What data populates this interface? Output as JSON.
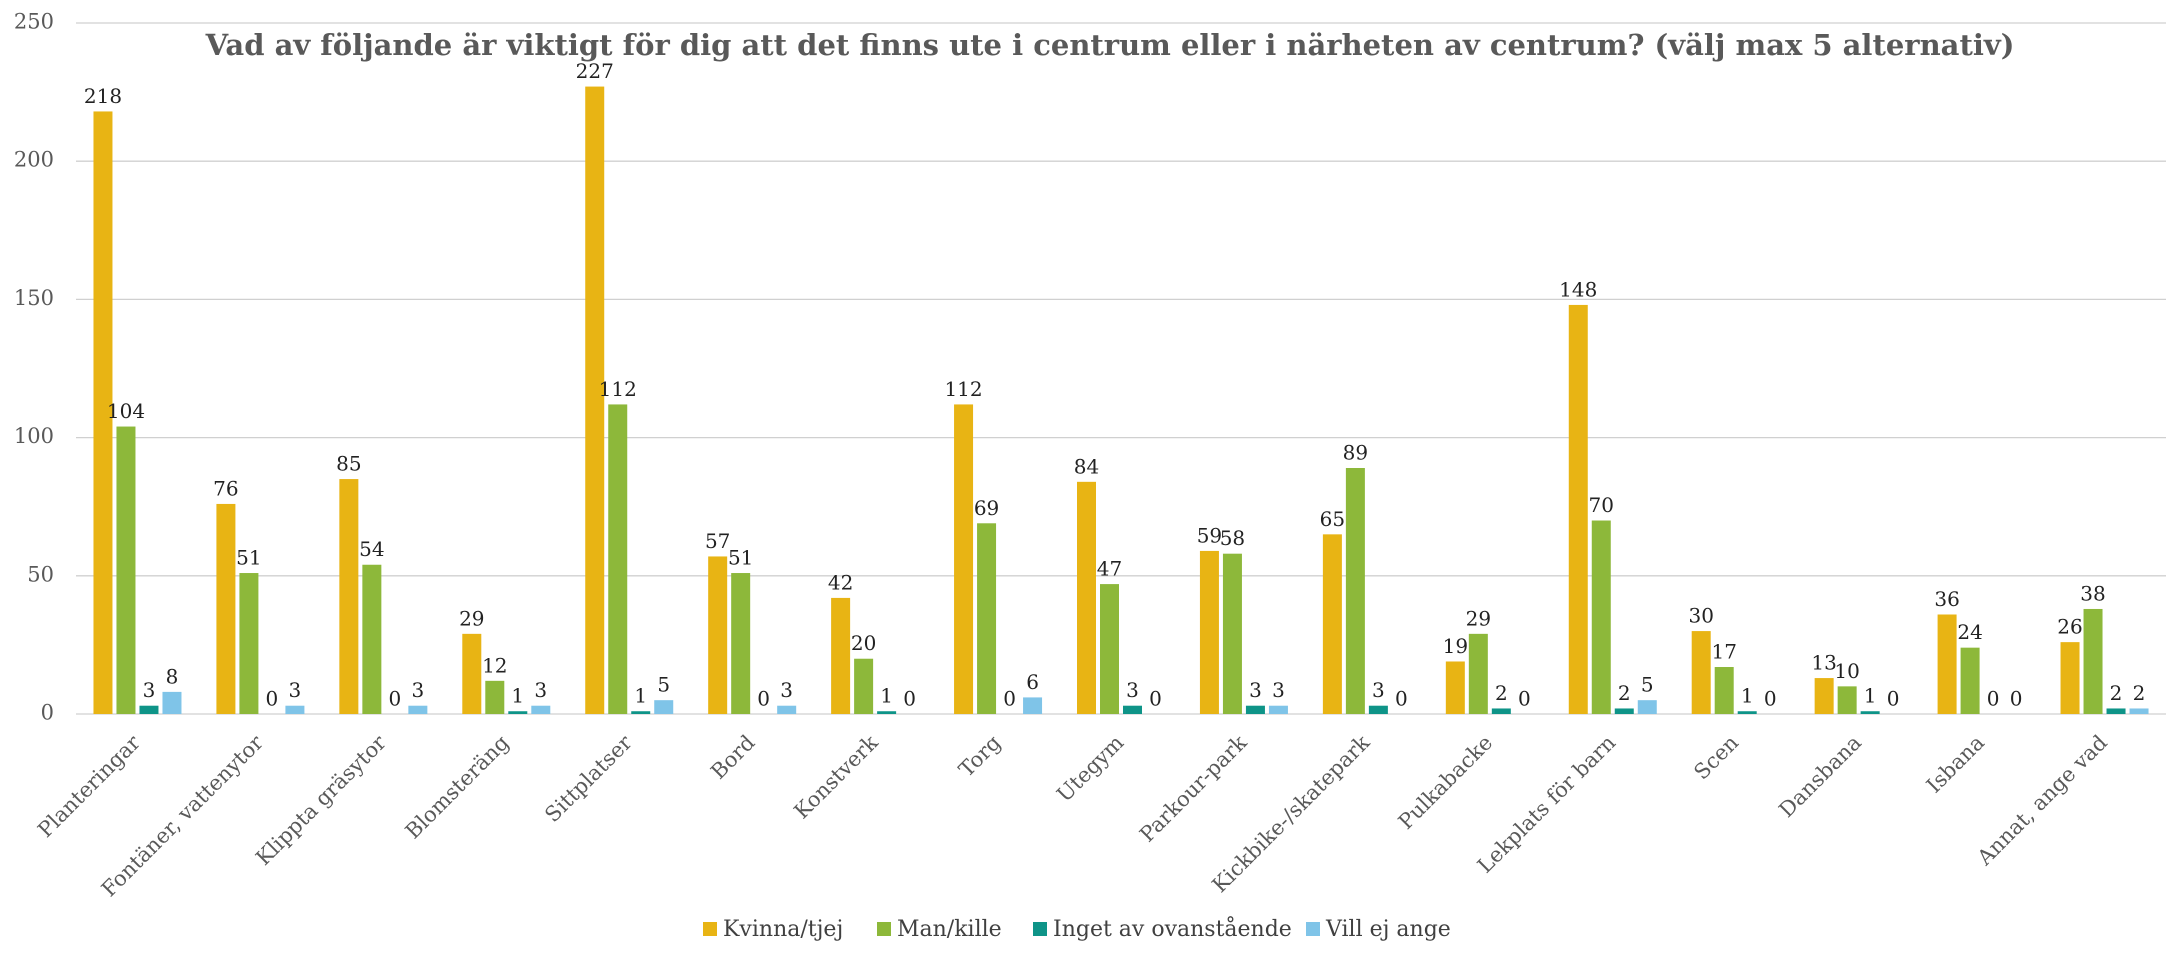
{
  "chart_data": {
    "type": "bar",
    "title": "Vad av följande är viktigt för dig att det finns ute i centrum eller i närheten av centrum? (välj max 5 alternativ)",
    "categories": [
      "Planteringar",
      "Fontäner, vattenytor",
      "Klippta gräsytor",
      "Blomsteräng",
      "Sittplatser",
      "Bord",
      "Konstverk",
      "Torg",
      "Utegym",
      "Parkour-park",
      "Kickbike-/skatepark",
      "Pulkabacke",
      "Lekplats för barn",
      "Scen",
      "Dansbana",
      "Isbana",
      "Annat, ange vad"
    ],
    "series": [
      {
        "name": "Kvinna/tjej",
        "color": "#e8b414",
        "values": [
          218,
          76,
          85,
          29,
          227,
          57,
          42,
          112,
          84,
          59,
          65,
          19,
          148,
          30,
          13,
          36,
          26
        ]
      },
      {
        "name": "Man/kille",
        "color": "#8db83a",
        "values": [
          104,
          51,
          54,
          12,
          112,
          51,
          20,
          69,
          47,
          58,
          89,
          29,
          70,
          17,
          10,
          24,
          38
        ]
      },
      {
        "name": "Inget av ovanstående",
        "color": "#0e9488",
        "values": [
          3,
          0,
          0,
          1,
          1,
          0,
          1,
          0,
          3,
          3,
          3,
          2,
          2,
          1,
          1,
          0,
          2
        ]
      },
      {
        "name": "Vill ej ange",
        "color": "#7fc4e8",
        "values": [
          8,
          3,
          3,
          3,
          5,
          3,
          0,
          6,
          0,
          3,
          0,
          0,
          5,
          0,
          0,
          0,
          2
        ]
      }
    ],
    "ylim": [
      0,
      250
    ],
    "yticks": [
      0,
      50,
      100,
      150,
      200,
      250
    ],
    "grid": true,
    "legend": "bottom"
  }
}
